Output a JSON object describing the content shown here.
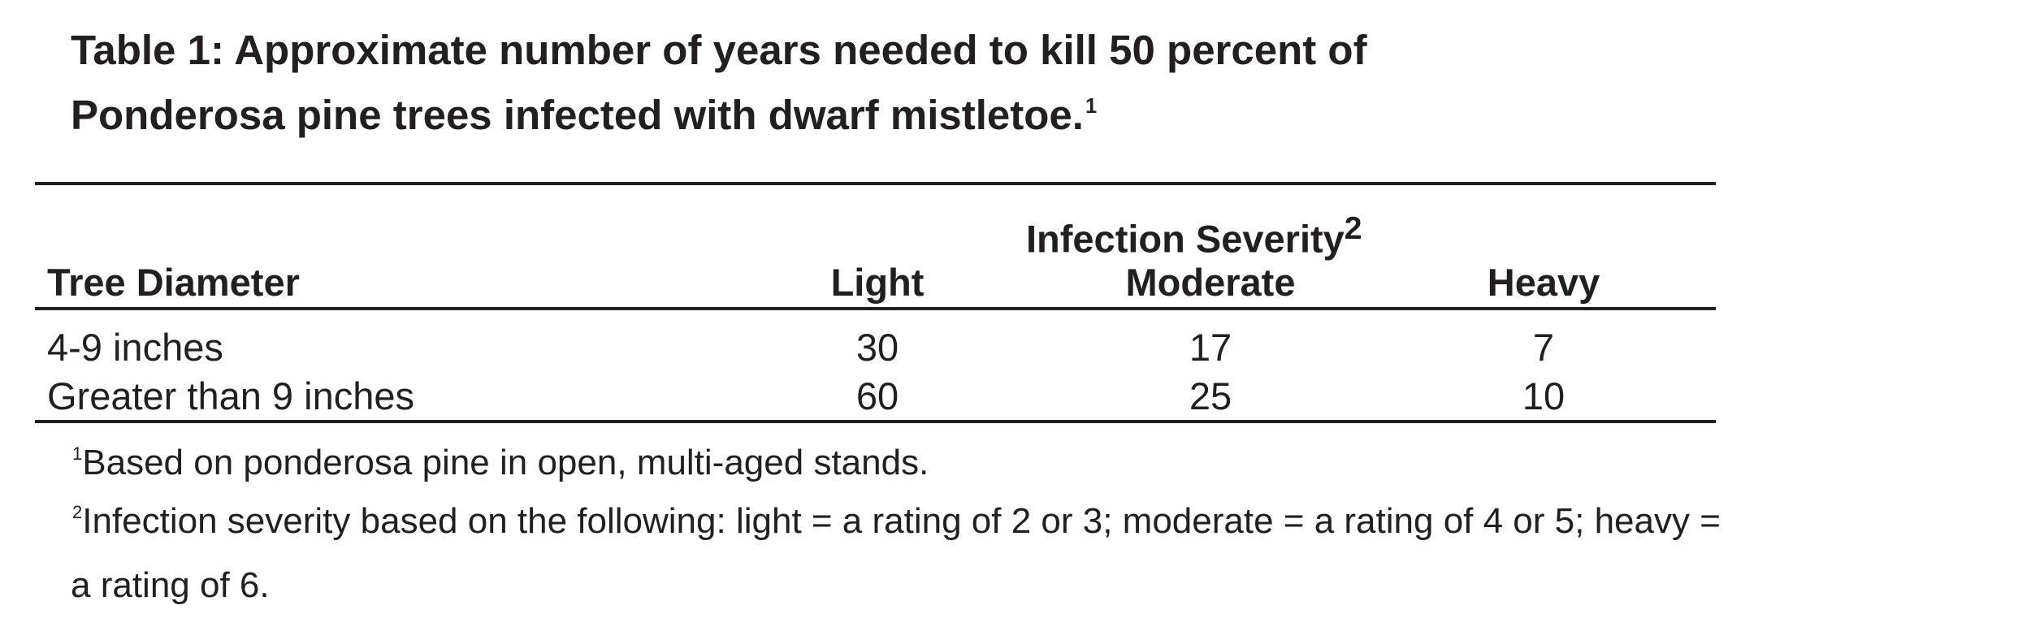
{
  "title": {
    "text": "Table 1: Approximate number of years needed to kill 50 percent of",
    "text_line2": "Ponderosa pine trees infected with dwarf mistletoe.",
    "footnote_ref": "1"
  },
  "table": {
    "group_header": {
      "label": "Infection Severity",
      "footnote_ref": "2"
    },
    "columns": [
      "Tree Diameter",
      "Light",
      "Moderate",
      "Heavy"
    ],
    "rows": [
      [
        "4-9 inches",
        "30",
        "17",
        "7"
      ],
      [
        "Greater than 9 inches",
        "60",
        "25",
        "10"
      ]
    ]
  },
  "footnotes": [
    {
      "marker": "1",
      "text": "Based on ponderosa pine in open, multi-aged stands."
    },
    {
      "marker": "2",
      "text": "Infection severity based on the following: light = a rating of 2 or 3; moderate = a rating of 4 or 5; heavy =",
      "text_line2": "a rating of 6."
    }
  ]
}
